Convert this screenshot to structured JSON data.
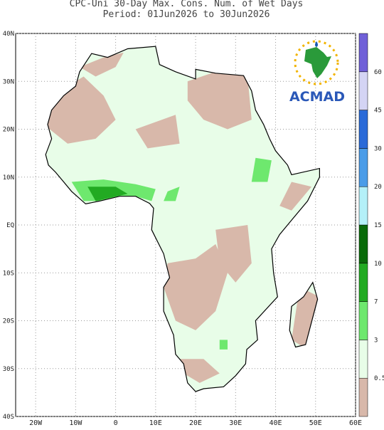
{
  "header": {
    "title": "CPC-Uni 30-Day Max. Cons. Num. of Wet Days",
    "subtitle": "Period: 01Jun2026 to 30Jun2026"
  },
  "logo": {
    "text": "ACMAD"
  },
  "map": {
    "lon_ticks": [
      {
        "value": -20,
        "label": "20W"
      },
      {
        "value": -10,
        "label": "10W"
      },
      0,
      {
        "value": 10,
        "label": "10E"
      },
      {
        "value": 20,
        "label": "20E"
      },
      {
        "value": 30,
        "label": "30E"
      },
      {
        "value": 40,
        "label": "40E"
      },
      {
        "value": 50,
        "label": "50E"
      },
      {
        "value": 60,
        "label": "60E"
      }
    ],
    "lat_ticks": [
      {
        "value": 40,
        "label": "40N"
      },
      {
        "value": 30,
        "label": "30N"
      },
      {
        "value": 20,
        "label": "20N"
      },
      {
        "value": 10,
        "label": "10N"
      },
      {
        "value": 0,
        "label": "EQ"
      },
      {
        "value": -10,
        "label": "10S"
      },
      {
        "value": -20,
        "label": "20S"
      },
      {
        "value": -30,
        "label": "30S"
      },
      {
        "value": -40,
        "label": "40S"
      }
    ],
    "xlim": [
      -25,
      60
    ],
    "ylim": [
      -40,
      40
    ]
  },
  "colorbar": {
    "levels": [
      0.5,
      3,
      7,
      10,
      15,
      20,
      30,
      45,
      60
    ],
    "colors": [
      "#d8b8aa",
      "#e8fde8",
      "#6ee86e",
      "#22aa22",
      "#096a09",
      "#b4f0f8",
      "#4a9ce8",
      "#2a6ad8",
      "#d4d4f4",
      "#7060d8"
    ]
  }
}
